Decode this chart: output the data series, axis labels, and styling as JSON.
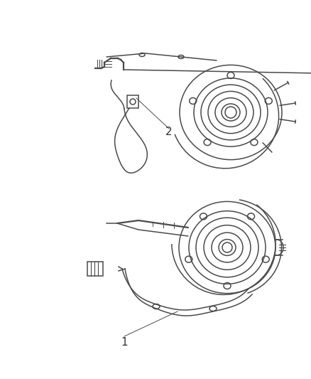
{
  "background_color": "#ffffff",
  "line_color": "#4a4a4a",
  "text_color": "#333333",
  "fig_width": 4.38,
  "fig_height": 5.33,
  "dpi": 100,
  "label1": "1",
  "label2": "2"
}
